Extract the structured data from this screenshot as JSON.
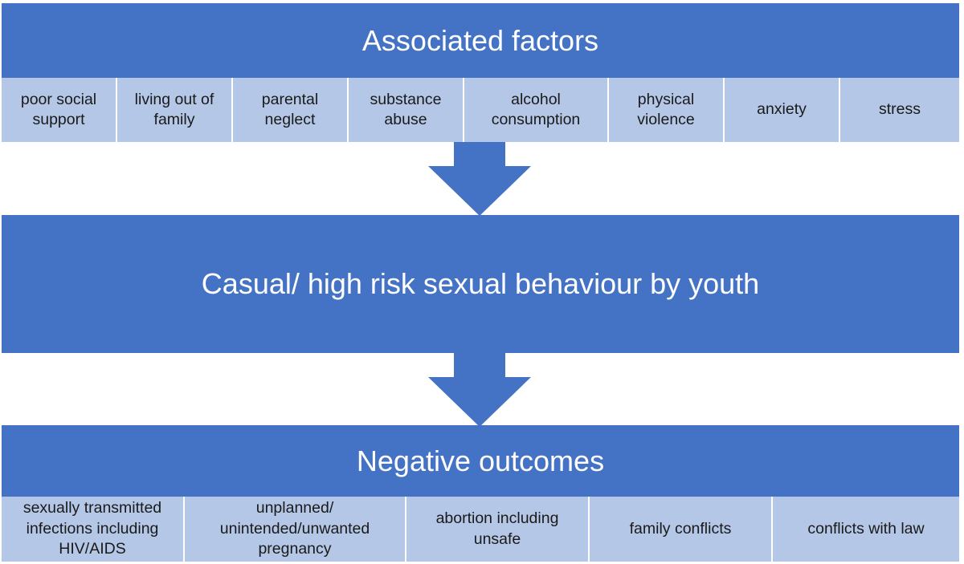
{
  "top": {
    "title": "Associated factors",
    "factors": [
      "poor social support",
      "living out of family",
      "parental neglect",
      "substance abuse",
      "alcohol consumption",
      "physical violence",
      "anxiety",
      "stress"
    ]
  },
  "middle": {
    "title": "Casual/ high risk sexual behaviour by youth"
  },
  "bottom": {
    "title": "Negative outcomes",
    "outcomes": [
      "sexually transmitted infections including HIV/AIDS",
      "unplanned/ unintended/unwanted pregnancy",
      "abortion including unsafe",
      "family conflicts",
      "conflicts with law"
    ]
  },
  "colors": {
    "banner": "#4472c4",
    "cell": "#b4c7e7",
    "arrow": "#4472c4"
  }
}
